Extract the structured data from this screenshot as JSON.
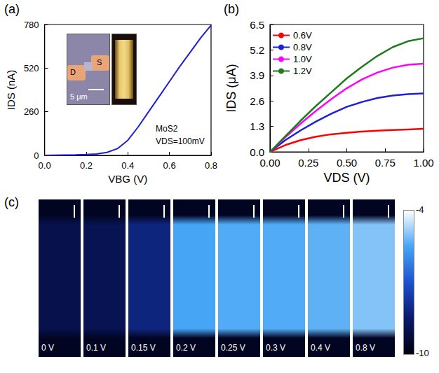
{
  "chart_data": [
    {
      "panel": "(a)",
      "type": "line",
      "x_label": "VBG (V)",
      "y_label": "IDS (nA)",
      "x": [
        0,
        0.05,
        0.1,
        0.15,
        0.2,
        0.25,
        0.3,
        0.35,
        0.4,
        0.45,
        0.5,
        0.55,
        0.6,
        0.65,
        0.7,
        0.75,
        0.8
      ],
      "values": [
        0,
        1,
        2,
        3,
        5,
        8,
        18,
        40,
        90,
        170,
        260,
        350,
        440,
        530,
        615,
        700,
        775
      ],
      "color": "#1f1fd0",
      "xlim": [
        0,
        0.8
      ],
      "xticks": [
        {
          "value": 0,
          "label": "0.0"
        },
        0.2,
        0.4,
        0.6,
        0.8
      ],
      "ylim": [
        0,
        780
      ],
      "yticks": [
        0,
        260,
        520,
        780
      ],
      "grid": false,
      "annotations": [
        "MoS2",
        "VDS=100mV"
      ],
      "inset": {
        "labels": [
          "D",
          "S"
        ],
        "scale_bar": "5 μm"
      }
    },
    {
      "panel": "(b)",
      "type": "line",
      "x_label": "VDS (V)",
      "y_label": "IDS (μA)",
      "x": [
        0,
        0.1,
        0.2,
        0.3,
        0.4,
        0.5,
        0.6,
        0.7,
        0.8,
        0.9,
        1.0
      ],
      "series": [
        {
          "name": "0.6V",
          "color": "#ff0000",
          "values": [
            0,
            0.35,
            0.6,
            0.78,
            0.9,
            0.98,
            1.04,
            1.08,
            1.12,
            1.15,
            1.18
          ]
        },
        {
          "name": "0.8V",
          "color": "#1f1fd6",
          "values": [
            0,
            0.6,
            1.1,
            1.55,
            1.95,
            2.3,
            2.55,
            2.75,
            2.88,
            2.95,
            2.98
          ]
        },
        {
          "name": "1.0V",
          "color": "#ff00ff",
          "values": [
            0,
            0.75,
            1.45,
            2.1,
            2.7,
            3.25,
            3.7,
            4.05,
            4.3,
            4.45,
            4.5
          ]
        },
        {
          "name": "1.2V",
          "color": "#1e7b1e",
          "values": [
            0,
            0.8,
            1.6,
            2.35,
            3.05,
            3.75,
            4.35,
            4.9,
            5.35,
            5.65,
            5.8
          ]
        }
      ],
      "xlim": [
        0,
        1.0
      ],
      "xticks": [
        {
          "value": 0,
          "label": "0.00"
        },
        0.25,
        {
          "value": 0.5,
          "label": "0.50"
        },
        0.75,
        {
          "value": 1.0,
          "label": "1.00"
        }
      ],
      "ylim": [
        0,
        6.5
      ],
      "yticks": [
        {
          "value": 0,
          "label": "0.0"
        },
        1.3,
        2.6,
        3.9,
        5.2,
        6.5
      ],
      "grid": false,
      "legend": "upper left"
    }
  ],
  "panel_c": {
    "panel": "(c)",
    "images": [
      {
        "label": "0 V",
        "level": -9.0
      },
      {
        "label": "0.1 V",
        "level": -8.9
      },
      {
        "label": "0.15 V",
        "level": -8.2
      },
      {
        "label": "0.2 V",
        "level": -5.5
      },
      {
        "label": "0.25 V",
        "level": -5.4
      },
      {
        "label": "0.3 V",
        "level": -5.4
      },
      {
        "label": "0.4 V",
        "level": -5.3
      },
      {
        "label": "0.8 V",
        "level": -5.0
      }
    ],
    "surround": -9.7,
    "colorbar": {
      "range": [
        -10,
        -4
      ],
      "ticks": [
        -10,
        -4
      ]
    }
  }
}
